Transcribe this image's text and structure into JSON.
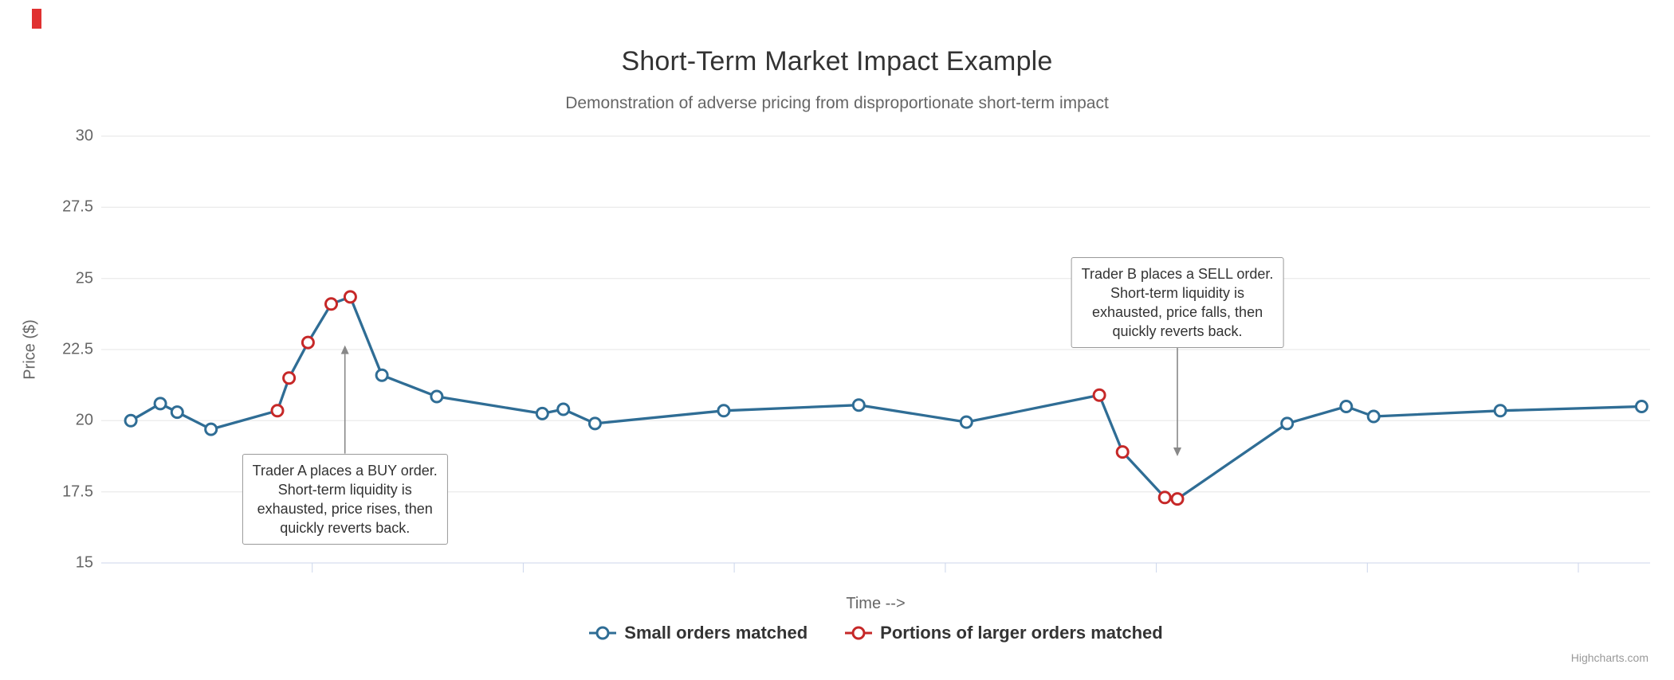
{
  "page": {
    "credits_label": "Highcharts.com",
    "background": "#ffffff",
    "red_indicator_color": "#e03131"
  },
  "chart_data": {
    "type": "line",
    "title": "Short-Term Market Impact Example",
    "subtitle": "Demonstration of adverse pricing from disproportionate short-term impact",
    "xlabel": "Time -->",
    "ylabel": "Price ($)",
    "xlim": [
      0,
      73.4
    ],
    "ylim": [
      15,
      30
    ],
    "yticks": [
      30,
      27.5,
      25,
      22.5,
      20,
      17.5,
      15
    ],
    "xticks": [
      10,
      20,
      30,
      40,
      50,
      60,
      70
    ],
    "grid": true,
    "legend_position": "bottom-center",
    "axis_line_color": "#ccd6eb",
    "gridline_color": "#e6e6e6",
    "series": [
      {
        "name": "Small orders matched",
        "color": "#2f6d95",
        "marker": "open-circle"
      },
      {
        "name": "Portions of larger orders matched",
        "color": "#c62828",
        "marker": "open-circle"
      }
    ],
    "points": [
      {
        "x": 1.4,
        "y": 20.0,
        "s": 0
      },
      {
        "x": 2.8,
        "y": 20.6,
        "s": 0
      },
      {
        "x": 3.6,
        "y": 20.3,
        "s": 0
      },
      {
        "x": 5.2,
        "y": 19.7,
        "s": 0
      },
      {
        "x": 8.35,
        "y": 20.35,
        "s": 1
      },
      {
        "x": 8.9,
        "y": 21.5,
        "s": 1
      },
      {
        "x": 9.8,
        "y": 22.75,
        "s": 1
      },
      {
        "x": 10.9,
        "y": 24.1,
        "s": 1
      },
      {
        "x": 11.8,
        "y": 24.35,
        "s": 1
      },
      {
        "x": 13.3,
        "y": 21.6,
        "s": 0
      },
      {
        "x": 15.9,
        "y": 20.85,
        "s": 0
      },
      {
        "x": 20.9,
        "y": 20.25,
        "s": 0
      },
      {
        "x": 21.9,
        "y": 20.4,
        "s": 0
      },
      {
        "x": 23.4,
        "y": 19.9,
        "s": 0
      },
      {
        "x": 29.5,
        "y": 20.35,
        "s": 0
      },
      {
        "x": 35.9,
        "y": 20.55,
        "s": 0
      },
      {
        "x": 41.0,
        "y": 19.95,
        "s": 0
      },
      {
        "x": 47.3,
        "y": 20.9,
        "s": 1
      },
      {
        "x": 48.4,
        "y": 18.9,
        "s": 1
      },
      {
        "x": 50.4,
        "y": 17.3,
        "s": 1
      },
      {
        "x": 51.0,
        "y": 17.25,
        "s": 1
      },
      {
        "x": 56.2,
        "y": 19.9,
        "s": 0
      },
      {
        "x": 59.0,
        "y": 20.5,
        "s": 0
      },
      {
        "x": 60.3,
        "y": 20.15,
        "s": 0
      },
      {
        "x": 66.3,
        "y": 20.35,
        "s": 0
      },
      {
        "x": 73.0,
        "y": 20.5,
        "s": 0
      }
    ],
    "annotations": {
      "trader_a": {
        "text": "Trader A places a BUY order.\nShort-term liquidity is\nexhausted, price rises, then\nquickly reverts back.",
        "anchor_x": 11.55,
        "anchor_y": 22.65,
        "side": "below"
      },
      "trader_b": {
        "text": "Trader B places a SELL order.\nShort-term liquidity is\nexhausted, price falls, then\nquickly reverts back.",
        "anchor_x": 51.0,
        "anchor_y": 18.75,
        "side": "above"
      }
    }
  }
}
